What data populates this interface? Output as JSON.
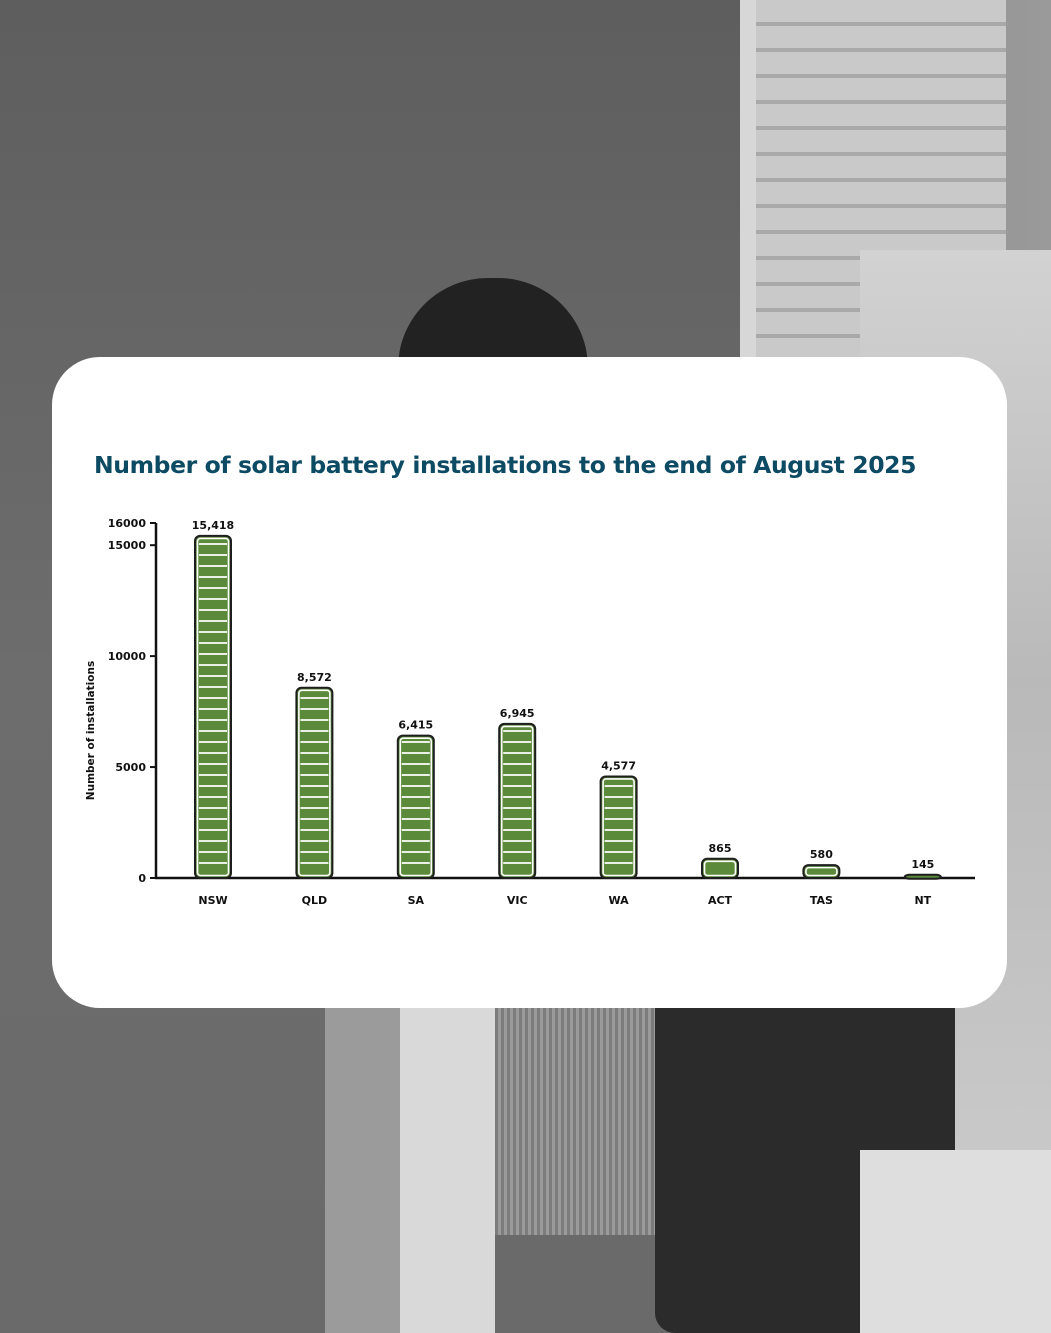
{
  "chart_data": {
    "type": "bar",
    "title": "Number of solar battery installations to the end of August 2025",
    "xlabel": "",
    "ylabel": "Number of installations",
    "categories": [
      "NSW",
      "QLD",
      "SA",
      "VIC",
      "WA",
      "ACT",
      "TAS",
      "NT"
    ],
    "values": [
      15418,
      8572,
      6415,
      6945,
      4577,
      865,
      580,
      145
    ],
    "value_labels": [
      "15,418",
      "8,572",
      "6,415",
      "6,945",
      "4,577",
      "865",
      "580",
      "145"
    ],
    "yticks": [
      0,
      5000,
      10000,
      15000,
      16000
    ],
    "ylim": [
      0,
      16000
    ],
    "grid": false,
    "legend": "none",
    "colors": {
      "bar_fill": "#5b8a3a",
      "bar_stripe": "#ffffff",
      "bar_outline": "#1e1e1e",
      "axis": "#111111",
      "title": "#0d4a63"
    }
  }
}
